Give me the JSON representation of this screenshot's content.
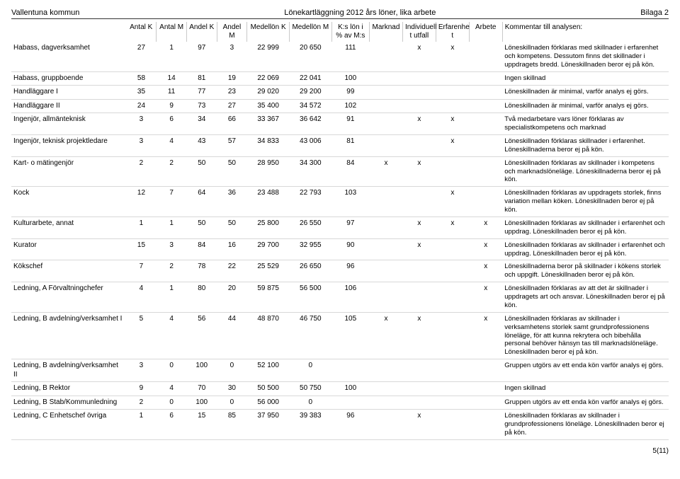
{
  "header": {
    "left": "Vallentuna kommun",
    "center": "Lönekartläggning 2012 års löner, lika arbete",
    "right": "Bilaga 2"
  },
  "columns": [
    "",
    "Antal K",
    "Antal M",
    "Andel K",
    "Andel M",
    "Medellön K",
    "Medellön M",
    "K:s lön i % av M:s",
    "Marknad",
    "Individuell t utfall",
    "Erfarenhe t",
    "Arbete",
    "Kommentar till analysen:"
  ],
  "rows": [
    {
      "label": "Habass, dagverksamhet",
      "c": [
        "27",
        "1",
        "97",
        "3",
        "22 999",
        "20 650",
        "111",
        "",
        "x",
        "x",
        "",
        "Löneskillnaden förklaras med skillnader i erfarenhet och kompetens. Dessutom finns det skillnader i uppdragets bredd. Löneskillnaden beror ej på kön."
      ]
    },
    {
      "label": "Habass, gruppboende",
      "c": [
        "58",
        "14",
        "81",
        "19",
        "22 069",
        "22 041",
        "100",
        "",
        "",
        "",
        "",
        "Ingen skillnad"
      ]
    },
    {
      "label": "Handläggare I",
      "c": [
        "35",
        "11",
        "77",
        "23",
        "29 020",
        "29 200",
        "99",
        "",
        "",
        "",
        "",
        "Löneskillnaden är minimal, varför analys ej görs."
      ]
    },
    {
      "label": "Handläggare II",
      "c": [
        "24",
        "9",
        "73",
        "27",
        "35 400",
        "34 572",
        "102",
        "",
        "",
        "",
        "",
        "Löneskillnaden är minimal, varför analys ej görs."
      ]
    },
    {
      "label": "Ingenjör, allmänteknisk",
      "c": [
        "3",
        "6",
        "34",
        "66",
        "33 367",
        "36 642",
        "91",
        "",
        "x",
        "x",
        "",
        "Två medarbetare vars löner förklaras av specialistkompetens och marknad"
      ]
    },
    {
      "label": "Ingenjör, teknisk projektledare",
      "c": [
        "3",
        "4",
        "43",
        "57",
        "34 833",
        "43 006",
        "81",
        "",
        "",
        "x",
        "",
        "Löneskillnaden förklaras skillnader i erfarenhet. Löneskillnaderna beror ej på kön."
      ]
    },
    {
      "label": "Kart- o mätingenjör",
      "c": [
        "2",
        "2",
        "50",
        "50",
        "28 950",
        "34 300",
        "84",
        "x",
        "x",
        "",
        "",
        "Löneskillnaden förklaras av skillnader i kompetens och marknadslöneläge. Löneskillnaderna beror ej på kön."
      ]
    },
    {
      "label": "Kock",
      "c": [
        "12",
        "7",
        "64",
        "36",
        "23 488",
        "22 793",
        "103",
        "",
        "",
        "x",
        "",
        "Löneskillnaden förklaras av uppdragets storlek, finns variation mellan köken. Löneskillnaden beror ej på kön."
      ]
    },
    {
      "label": "Kulturarbete, annat",
      "c": [
        "1",
        "1",
        "50",
        "50",
        "25 800",
        "26 550",
        "97",
        "",
        "x",
        "x",
        "x",
        "Löneskillnaden förklaras av skillnader i erfarenhet och uppdrag. Löneskillnaden beror ej på kön."
      ]
    },
    {
      "label": "Kurator",
      "c": [
        "15",
        "3",
        "84",
        "16",
        "29 700",
        "32 955",
        "90",
        "",
        "x",
        "",
        "x",
        "Löneskillnaden förklaras av skillnader i erfarenhet och uppdrag. Löneskillnaden beror ej på kön."
      ]
    },
    {
      "label": "Kökschef",
      "c": [
        "7",
        "2",
        "78",
        "22",
        "25 529",
        "26 650",
        "96",
        "",
        "",
        "",
        "x",
        "Löneskillnaderna beror på skillnader i kökens storlek och uppgift. Löneskillnaden beror ej på kön."
      ]
    },
    {
      "label": "Ledning, A Förvaltningchefer",
      "c": [
        "4",
        "1",
        "80",
        "20",
        "59 875",
        "56 500",
        "106",
        "",
        "",
        "",
        "x",
        "Löneskillnaden förklaras av att det är skillnader i uppdragets art och ansvar. Löneskillnaden beror ej på kön."
      ]
    },
    {
      "label": "Ledning, B avdelning/verksamhet I",
      "c": [
        "5",
        "4",
        "56",
        "44",
        "48 870",
        "46 750",
        "105",
        "x",
        "x",
        "",
        "x",
        "Löneskillnaden förklaras av skillnader i verksamhetens storlek samt grundprofessionens löneläge, för att kunna rekrytera och bibehålla personal behöver hänsyn tas till marknadslöneläge. Löneskillnaden beror ej på kön."
      ]
    },
    {
      "label": "Ledning, B avdelning/verksamhet II",
      "c": [
        "3",
        "0",
        "100",
        "0",
        "52 100",
        "0",
        "",
        "",
        "",
        "",
        "",
        "Gruppen utgörs av ett enda kön varför analys ej görs."
      ]
    },
    {
      "label": "Ledning, B Rektor",
      "c": [
        "9",
        "4",
        "70",
        "30",
        "50 500",
        "50 750",
        "100",
        "",
        "",
        "",
        "",
        "Ingen skillnad"
      ]
    },
    {
      "label": "Ledning, B Stab/Kommunledning",
      "c": [
        "2",
        "0",
        "100",
        "0",
        "56 000",
        "0",
        "",
        "",
        "",
        "",
        "",
        "Gruppen utgörs av ett enda kön varför analys ej görs."
      ]
    },
    {
      "label": "Ledning, C Enhetschef övriga",
      "c": [
        "1",
        "6",
        "15",
        "85",
        "37 950",
        "39 383",
        "96",
        "",
        "x",
        "",
        "",
        "Löneskillnaden förklaras av skillnader i grundprofessionens löneläge. Löneskillnaden beror ej på kön."
      ]
    }
  ],
  "footer": "5(11)"
}
